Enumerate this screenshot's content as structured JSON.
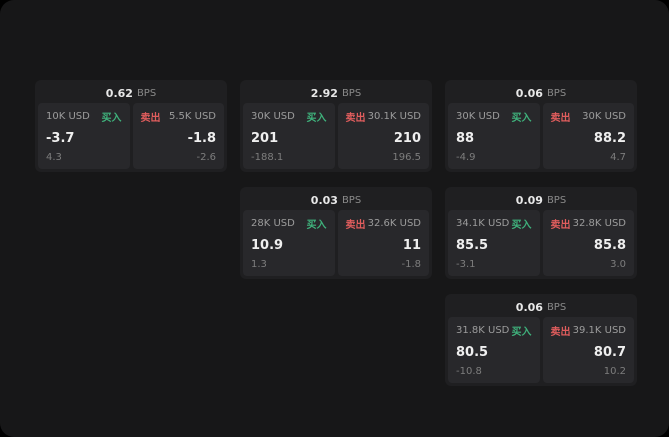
{
  "labels": {
    "bps": "BPS",
    "buy": "买入",
    "sell": "卖出"
  },
  "colors": {
    "background": "#171718",
    "card": "#1f1f21",
    "panel": "#28282b",
    "buy_green": "#3fb27c",
    "sell_red": "#e05d5d"
  },
  "cards": [
    {
      "bps": "0.62",
      "buy": {
        "amount": "10K USD",
        "price": "-3.7",
        "sub": "4.3"
      },
      "sell": {
        "amount": "5.5K USD",
        "price": "-1.8",
        "sub": "-2.6"
      }
    },
    {
      "bps": "2.92",
      "buy": {
        "amount": "30K USD",
        "price": "201",
        "sub": "-188.1"
      },
      "sell": {
        "amount": "30.1K USD",
        "price": "210",
        "sub": "196.5"
      }
    },
    {
      "bps": "0.06",
      "buy": {
        "amount": "30K USD",
        "price": "88",
        "sub": "-4.9"
      },
      "sell": {
        "amount": "30K USD",
        "price": "88.2",
        "sub": "4.7"
      }
    },
    {
      "bps": "0.03",
      "buy": {
        "amount": "28K USD",
        "price": "10.9",
        "sub": "1.3"
      },
      "sell": {
        "amount": "32.6K USD",
        "price": "11",
        "sub": "-1.8"
      }
    },
    {
      "bps": "0.09",
      "buy": {
        "amount": "34.1K USD",
        "price": "85.5",
        "sub": "-3.1"
      },
      "sell": {
        "amount": "32.8K USD",
        "price": "85.8",
        "sub": "3.0"
      }
    },
    {
      "bps": "0.06",
      "buy": {
        "amount": "31.8K USD",
        "price": "80.5",
        "sub": "-10.8"
      },
      "sell": {
        "amount": "39.1K USD",
        "price": "80.7",
        "sub": "10.2"
      }
    }
  ]
}
